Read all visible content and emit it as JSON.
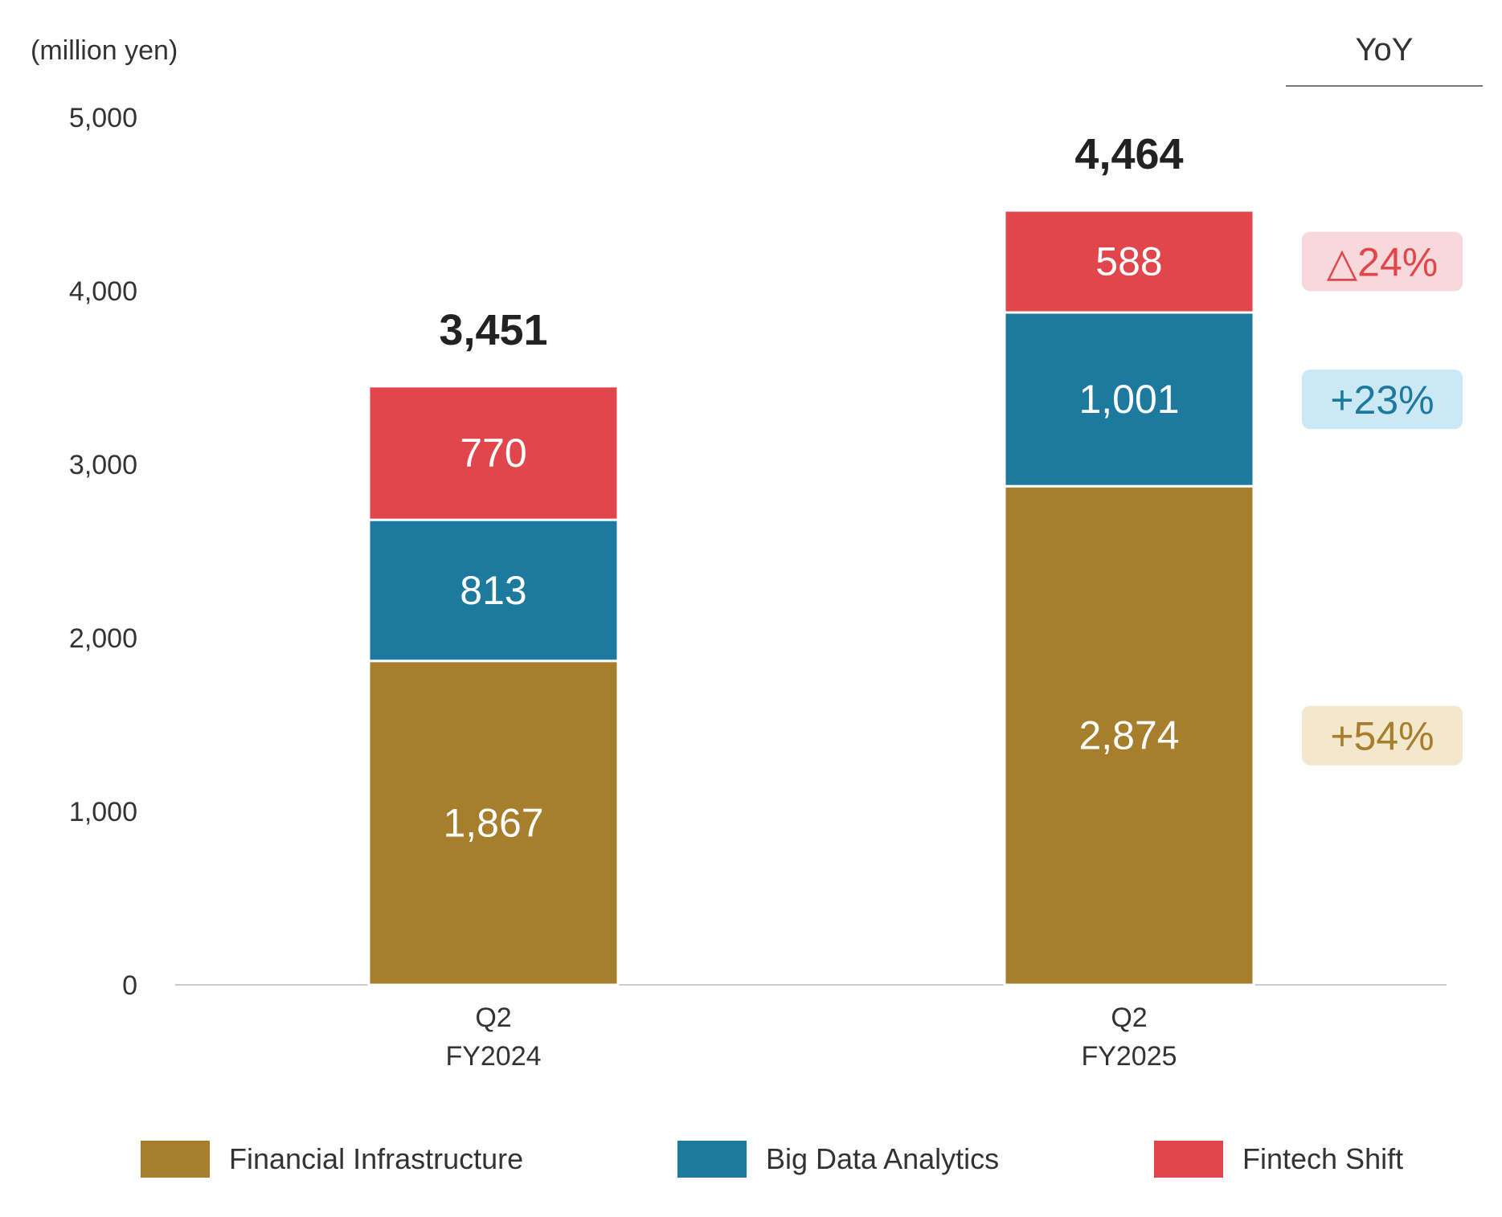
{
  "unit_label": "(million yen)",
  "yoy_header": "YoY",
  "colors": {
    "financial_infrastructure": "#A67E2C",
    "big_data_analytics": "#1E799F",
    "fintech_shift": "#E0464C",
    "yoy_red_bg": "#F8D9DB",
    "yoy_blue_bg": "#CDE8F5",
    "yoy_gold_bg": "#F3E7CE",
    "axis": "#CCCCCC"
  },
  "legend": [
    {
      "label": "Financial Infrastructure",
      "color": "#A67E2C"
    },
    {
      "label": "Big Data Analytics",
      "color": "#1E799F"
    },
    {
      "label": "Fintech Shift",
      "color": "#E0464C"
    }
  ],
  "yoy": [
    {
      "series": "Fintech Shift",
      "label": "△24%",
      "color": "#E0464C",
      "bg": "#F8D9DB"
    },
    {
      "series": "Big Data Analytics",
      "label": "+23%",
      "color": "#1E799F",
      "bg": "#CDE8F5"
    },
    {
      "series": "Financial Infrastructure",
      "label": "+54%",
      "color": "#A67E2C",
      "bg": "#F3E7CE"
    }
  ],
  "chart_data": {
    "type": "bar",
    "stacked": true,
    "title": "",
    "xlabel": "",
    "ylabel": "(million yen)",
    "ylim": [
      0,
      5000
    ],
    "yticks": [
      0,
      1000,
      2000,
      3000,
      4000,
      5000
    ],
    "ytick_labels": [
      "0",
      "1,000",
      "2,000",
      "3,000",
      "4,000",
      "5,000"
    ],
    "categories": [
      [
        "Q2",
        "FY2024"
      ],
      [
        "Q2",
        "FY2025"
      ]
    ],
    "series": [
      {
        "name": "Financial Infrastructure",
        "values": [
          1867,
          2874
        ],
        "labels": [
          "1,867",
          "2,874"
        ],
        "color": "#A67E2C"
      },
      {
        "name": "Big Data Analytics",
        "values": [
          813,
          1001
        ],
        "labels": [
          "813",
          "1,001"
        ],
        "color": "#1E799F"
      },
      {
        "name": "Fintech Shift",
        "values": [
          770,
          588
        ],
        "labels": [
          "770",
          "588"
        ],
        "color": "#E0464C"
      }
    ],
    "totals": [
      3451,
      4464
    ],
    "total_labels": [
      "3,451",
      "4,464"
    ],
    "legend_position": "bottom"
  }
}
